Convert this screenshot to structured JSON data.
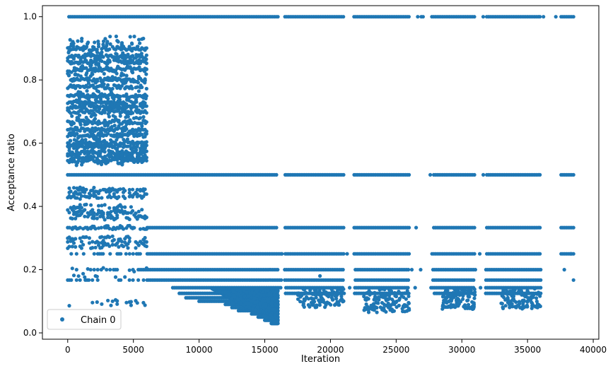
{
  "chart_data": {
    "type": "scatter",
    "title": "",
    "xlabel": "Iteration",
    "ylabel": "Acceptance ratio",
    "xlim": [
      -1925,
      40425
    ],
    "ylim": [
      -0.02,
      1.035
    ],
    "xticks": [
      0,
      5000,
      10000,
      15000,
      20000,
      25000,
      30000,
      35000,
      40000
    ],
    "xtick_labels": [
      "0",
      "5000",
      "10000",
      "15000",
      "20000",
      "25000",
      "30000",
      "35000",
      "40000"
    ],
    "yticks": [
      0.0,
      0.2,
      0.4,
      0.6,
      0.8,
      1.0
    ],
    "ytick_labels": [
      "0.0",
      "0.2",
      "0.4",
      "0.6",
      "0.8",
      "1.0"
    ],
    "grid": false,
    "legend": {
      "position": "lower-left"
    },
    "series": [
      {
        "name": "Chain 0",
        "color": "#1f77b4",
        "marker": "circle",
        "x_range": [
          0,
          38500
        ],
        "points_per_band": 40,
        "bands": [
          {
            "y": 1.0,
            "x_range": [
              100,
              38500
            ]
          },
          {
            "y": 0.5,
            "x_range": [
              0,
              38500
            ]
          },
          {
            "y": 0.333,
            "x_range": [
              0,
              38500
            ]
          },
          {
            "y": 0.25,
            "x_range": [
              0,
              38500
            ]
          },
          {
            "y": 0.2,
            "x_range": [
              0,
              36000
            ]
          },
          {
            "y": 0.167,
            "x_range": [
              0,
              36000
            ]
          },
          {
            "y": 0.143,
            "x_range": [
              8000,
              36000
            ]
          },
          {
            "y": 0.125,
            "x_range": [
              8500,
              36000
            ]
          },
          {
            "y": 0.111,
            "x_range": [
              9000,
              16000
            ]
          },
          {
            "y": 0.1,
            "x_range": [
              10000,
              16000
            ]
          },
          {
            "y": 0.09,
            "x_range": [
              12000,
              16000
            ]
          },
          {
            "y": 0.08,
            "x_range": [
              12500,
              16000
            ]
          },
          {
            "y": 0.07,
            "x_range": [
              13000,
              16000
            ]
          },
          {
            "y": 0.06,
            "x_range": [
              14000,
              16000
            ]
          },
          {
            "y": 0.05,
            "x_range": [
              14500,
              16000
            ]
          },
          {
            "y": 0.04,
            "x_range": [
              15000,
              16000
            ]
          },
          {
            "y": 0.03,
            "x_range": [
              15500,
              16000
            ]
          }
        ],
        "early_phase": {
          "x_range": [
            0,
            6000
          ],
          "y_levels": [
            0.9,
            0.875,
            0.857,
            0.833,
            0.8,
            0.778,
            0.75,
            0.727,
            0.714,
            0.7,
            0.667,
            0.643,
            0.625,
            0.6,
            0.588,
            0.571,
            0.556,
            0.545,
            0.455,
            0.444,
            0.429,
            0.4,
            0.385,
            0.375,
            0.364,
            0.333,
            0.3,
            0.286,
            0.273,
            0.2,
            0.182,
            0.1,
            0.091
          ],
          "max_y": 0.94
        },
        "gaps": [
          [
            16000,
            16500
          ],
          [
            21000,
            21800
          ],
          [
            26000,
            27800
          ],
          [
            31000,
            31800
          ],
          [
            36000,
            37500
          ]
        ]
      }
    ]
  }
}
